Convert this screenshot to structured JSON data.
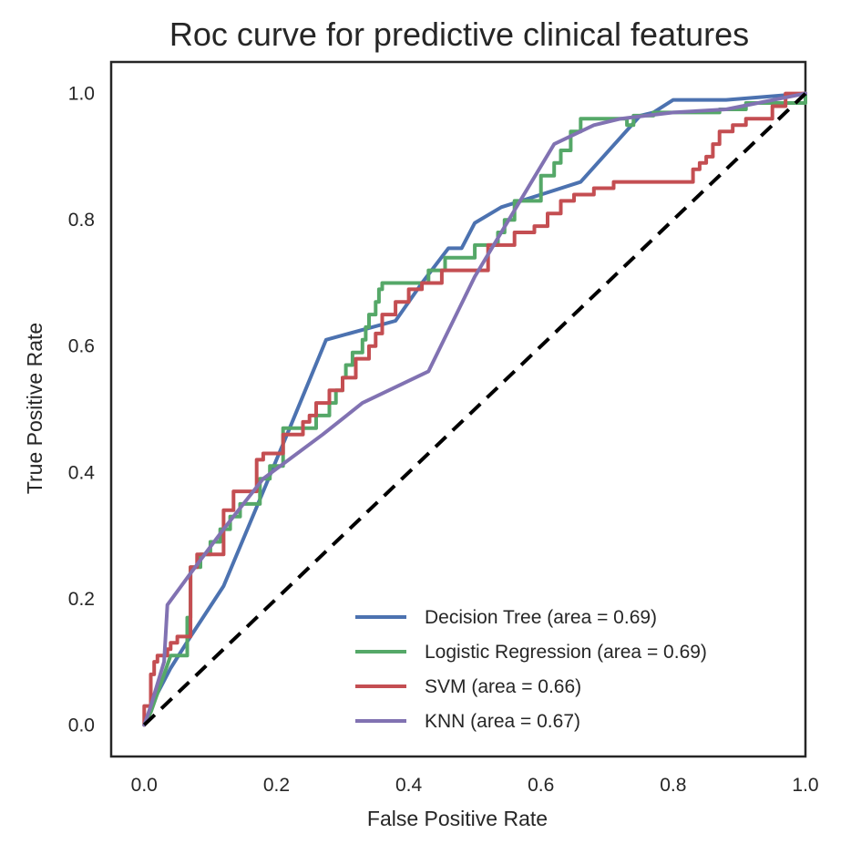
{
  "chart_data": {
    "type": "line",
    "title": "Roc curve for predictive clinical features",
    "xlabel": "False Positive Rate",
    "ylabel": "True Positive Rate",
    "xlim": [
      -0.05,
      1.0
    ],
    "ylim": [
      -0.05,
      1.05
    ],
    "xticks": [
      "0.0",
      "0.2",
      "0.4",
      "0.6",
      "0.8",
      "1.0"
    ],
    "yticks": [
      "0.0",
      "0.2",
      "0.4",
      "0.6",
      "0.8",
      "1.0"
    ],
    "grid": false,
    "legend_position": "lower-right",
    "diagonal": {
      "style": "dashed",
      "color": "#000000",
      "x": [
        0,
        1
      ],
      "y": [
        0,
        1
      ]
    },
    "series": [
      {
        "name": "Decision Tree (area = 0.69)",
        "color": "#4c72b0",
        "x": [
          0.0,
          0.02,
          0.04,
          0.07,
          0.12,
          0.18,
          0.22,
          0.275,
          0.38,
          0.42,
          0.46,
          0.48,
          0.5,
          0.54,
          0.6,
          0.66,
          0.75,
          0.77,
          0.8,
          0.88,
          1.0
        ],
        "y": [
          0.0,
          0.05,
          0.09,
          0.14,
          0.22,
          0.37,
          0.47,
          0.61,
          0.64,
          0.7,
          0.755,
          0.755,
          0.795,
          0.82,
          0.84,
          0.86,
          0.965,
          0.97,
          0.99,
          0.99,
          1.0
        ]
      },
      {
        "name": "Logistic Regression (area = 0.69)",
        "color": "#55a868",
        "x": [
          0.0,
          0.01,
          0.02,
          0.03,
          0.04,
          0.04,
          0.065,
          0.065,
          0.07,
          0.07,
          0.085,
          0.085,
          0.1,
          0.1,
          0.115,
          0.115,
          0.13,
          0.13,
          0.145,
          0.145,
          0.175,
          0.175,
          0.19,
          0.19,
          0.21,
          0.21,
          0.26,
          0.26,
          0.28,
          0.28,
          0.29,
          0.29,
          0.3,
          0.3,
          0.305,
          0.305,
          0.315,
          0.315,
          0.33,
          0.33,
          0.335,
          0.335,
          0.34,
          0.34,
          0.35,
          0.35,
          0.355,
          0.355,
          0.36,
          0.36,
          0.43,
          0.43,
          0.455,
          0.455,
          0.5,
          0.5,
          0.535,
          0.535,
          0.545,
          0.545,
          0.56,
          0.56,
          0.6,
          0.6,
          0.62,
          0.62,
          0.63,
          0.63,
          0.645,
          0.645,
          0.66,
          0.66,
          0.73,
          0.73,
          0.74,
          0.74,
          0.77,
          0.77,
          0.87,
          0.87,
          0.91,
          0.91,
          1.0,
          1.0
        ],
        "y": [
          0.0,
          0.02,
          0.05,
          0.08,
          0.11,
          0.11,
          0.11,
          0.17,
          0.17,
          0.25,
          0.25,
          0.27,
          0.27,
          0.29,
          0.29,
          0.31,
          0.31,
          0.33,
          0.33,
          0.35,
          0.35,
          0.39,
          0.39,
          0.41,
          0.41,
          0.47,
          0.47,
          0.49,
          0.49,
          0.51,
          0.51,
          0.53,
          0.53,
          0.55,
          0.55,
          0.57,
          0.57,
          0.59,
          0.59,
          0.61,
          0.61,
          0.63,
          0.63,
          0.65,
          0.65,
          0.67,
          0.67,
          0.69,
          0.69,
          0.7,
          0.7,
          0.72,
          0.72,
          0.74,
          0.74,
          0.76,
          0.76,
          0.78,
          0.78,
          0.8,
          0.8,
          0.83,
          0.83,
          0.87,
          0.87,
          0.89,
          0.89,
          0.91,
          0.91,
          0.94,
          0.94,
          0.96,
          0.96,
          0.95,
          0.95,
          0.965,
          0.965,
          0.97,
          0.97,
          0.975,
          0.975,
          0.985,
          0.985,
          1.0
        ]
      },
      {
        "name": "SVM (area = 0.66)",
        "color": "#c44e52",
        "x": [
          0.0,
          0.0,
          0.01,
          0.01,
          0.015,
          0.015,
          0.02,
          0.02,
          0.035,
          0.035,
          0.04,
          0.04,
          0.05,
          0.05,
          0.07,
          0.07,
          0.08,
          0.08,
          0.12,
          0.12,
          0.135,
          0.135,
          0.17,
          0.17,
          0.18,
          0.18,
          0.21,
          0.21,
          0.24,
          0.24,
          0.25,
          0.25,
          0.26,
          0.26,
          0.28,
          0.28,
          0.3,
          0.3,
          0.32,
          0.32,
          0.34,
          0.34,
          0.35,
          0.35,
          0.36,
          0.36,
          0.38,
          0.38,
          0.4,
          0.4,
          0.42,
          0.42,
          0.45,
          0.45,
          0.52,
          0.52,
          0.56,
          0.56,
          0.59,
          0.59,
          0.61,
          0.61,
          0.63,
          0.63,
          0.65,
          0.65,
          0.68,
          0.68,
          0.71,
          0.71,
          0.75,
          0.75,
          0.83,
          0.83,
          0.84,
          0.84,
          0.85,
          0.85,
          0.86,
          0.86,
          0.87,
          0.87,
          0.89,
          0.89,
          0.91,
          0.91,
          0.95,
          0.95,
          0.97,
          0.97,
          1.0
        ],
        "y": [
          0.0,
          0.03,
          0.03,
          0.08,
          0.08,
          0.1,
          0.1,
          0.11,
          0.11,
          0.12,
          0.12,
          0.13,
          0.13,
          0.14,
          0.14,
          0.25,
          0.25,
          0.27,
          0.27,
          0.34,
          0.34,
          0.37,
          0.37,
          0.42,
          0.42,
          0.43,
          0.43,
          0.46,
          0.46,
          0.48,
          0.48,
          0.49,
          0.49,
          0.51,
          0.51,
          0.53,
          0.53,
          0.55,
          0.55,
          0.58,
          0.58,
          0.6,
          0.6,
          0.62,
          0.62,
          0.65,
          0.65,
          0.67,
          0.67,
          0.69,
          0.69,
          0.7,
          0.7,
          0.72,
          0.72,
          0.76,
          0.76,
          0.78,
          0.78,
          0.79,
          0.79,
          0.81,
          0.81,
          0.83,
          0.83,
          0.84,
          0.84,
          0.85,
          0.85,
          0.86,
          0.86,
          0.86,
          0.86,
          0.88,
          0.88,
          0.89,
          0.89,
          0.9,
          0.9,
          0.92,
          0.92,
          0.94,
          0.94,
          0.95,
          0.95,
          0.96,
          0.96,
          0.98,
          0.98,
          1.0,
          1.0
        ]
      },
      {
        "name": "KNN (area = 0.67)",
        "color": "#8172b2",
        "x": [
          0.0,
          0.01,
          0.03,
          0.035,
          0.07,
          0.12,
          0.18,
          0.27,
          0.33,
          0.43,
          0.5,
          0.58,
          0.62,
          0.68,
          0.72,
          0.8,
          0.88,
          1.0
        ],
        "y": [
          0.0,
          0.03,
          0.1,
          0.19,
          0.24,
          0.31,
          0.39,
          0.46,
          0.51,
          0.56,
          0.71,
          0.85,
          0.92,
          0.95,
          0.96,
          0.97,
          0.975,
          1.0
        ]
      }
    ]
  }
}
